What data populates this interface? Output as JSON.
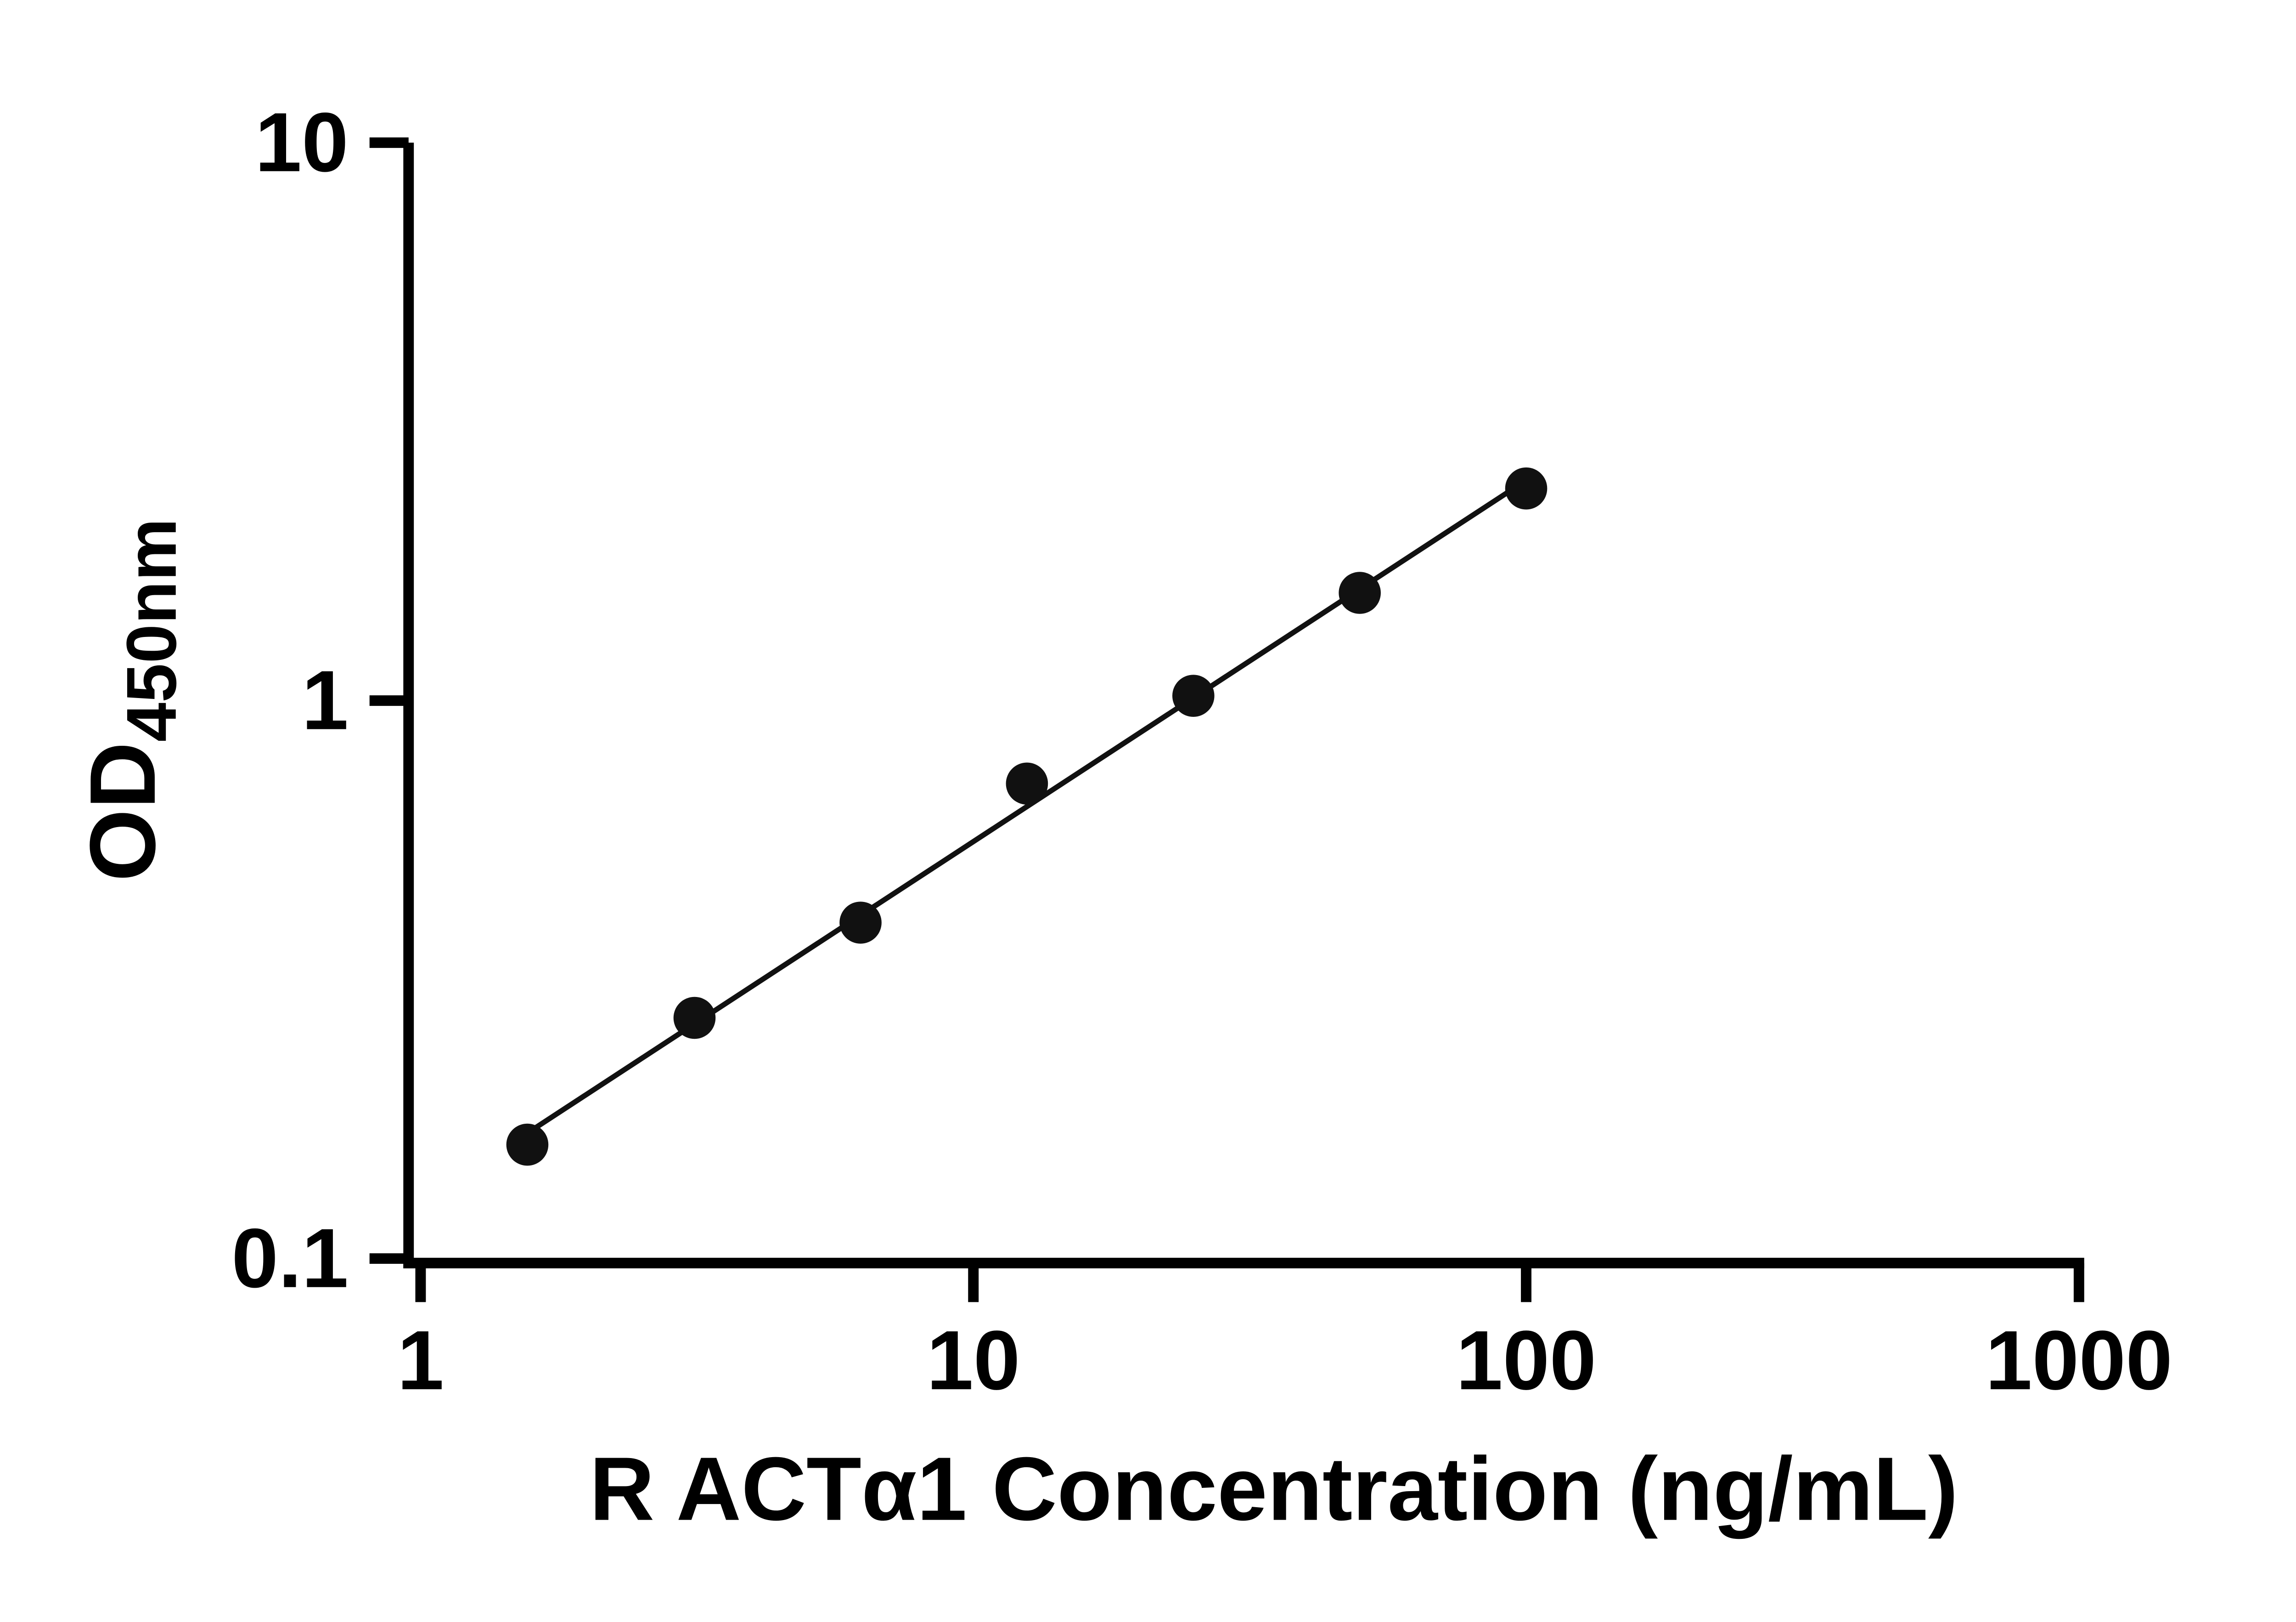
{
  "chart_data": {
    "type": "scatter",
    "title": "",
    "xlabel": "R ACTα1 Concentration (ng/mL)",
    "ylabel_main": "OD",
    "ylabel_sub": "450nm",
    "x_scale": "log",
    "y_scale": "log",
    "xlim": [
      1,
      1000
    ],
    "ylim": [
      0.1,
      10
    ],
    "x_ticks": [
      1,
      10,
      100,
      1000
    ],
    "y_ticks": [
      0.1,
      1,
      10
    ],
    "grid": "off",
    "legend": "none",
    "marker_color": "#111111",
    "line_color": "#111111",
    "points": [
      {
        "x": 1.56,
        "y": 0.16
      },
      {
        "x": 3.13,
        "y": 0.27
      },
      {
        "x": 6.25,
        "y": 0.4
      },
      {
        "x": 12.5,
        "y": 0.71
      },
      {
        "x": 25,
        "y": 1.02
      },
      {
        "x": 50,
        "y": 1.56
      },
      {
        "x": 100,
        "y": 2.4
      }
    ]
  }
}
